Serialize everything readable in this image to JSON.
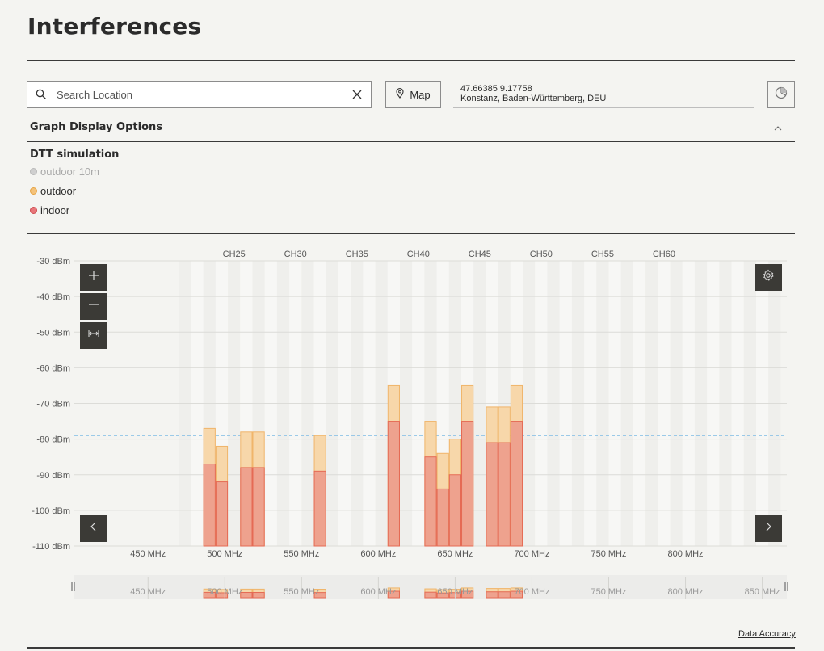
{
  "page": {
    "title": "Interferences"
  },
  "search": {
    "placeholder": "Search Location",
    "value": ""
  },
  "map_button": {
    "label": "Map"
  },
  "location": {
    "coordinates": "47.66385 9.17758",
    "address": "Konstanz, Baden-Württemberg, DEU"
  },
  "graph_options": {
    "header": "Graph Display Options"
  },
  "legend": {
    "title": "DTT simulation",
    "items": [
      {
        "label": "outdoor 10m",
        "color": "#c9c9c9",
        "text_color": "#a9a9a9",
        "active": false
      },
      {
        "label": "outdoor",
        "color": "#f2b860",
        "text_color": "#2b2b2b",
        "active": true
      },
      {
        "label": "indoor",
        "color": "#e2676b",
        "text_color": "#2b2b2b",
        "active": true
      }
    ]
  },
  "colors": {
    "outdoor_fill": "#f7d7aa",
    "outdoor_stroke": "#f0b56a",
    "indoor_fill": "#eea28e",
    "indoor_stroke": "#e56a54",
    "threshold_line": "#8ec3e6",
    "button_dark": "#3b3a36"
  },
  "chart_data": {
    "type": "bar",
    "ylim": [
      -110,
      -30
    ],
    "y_ticks": [
      -30,
      -40,
      -50,
      -60,
      -70,
      -80,
      -90,
      -100,
      -110
    ],
    "y_tick_labels": [
      "-30 dBm",
      "-40 dBm",
      "-50 dBm",
      "-60 dBm",
      "-70 dBm",
      "-80 dBm",
      "-90 dBm",
      "-100 dBm",
      "-110 dBm"
    ],
    "xlim_mhz": [
      402,
      866
    ],
    "x_ticks_mhz": [
      450,
      500,
      550,
      600,
      650,
      700,
      750,
      800
    ],
    "x_tick_labels": [
      "450 MHz",
      "500 MHz",
      "550 MHz",
      "600 MHz",
      "650 MHz",
      "700 MHz",
      "750 MHz",
      "800 MHz"
    ],
    "channel_labels": [
      {
        "label": "CH25",
        "channel": 25
      },
      {
        "label": "CH30",
        "channel": 30
      },
      {
        "label": "CH35",
        "channel": 35
      },
      {
        "label": "CH40",
        "channel": 40
      },
      {
        "label": "CH45",
        "channel": 45
      },
      {
        "label": "CH50",
        "channel": 50
      },
      {
        "label": "CH55",
        "channel": 55
      },
      {
        "label": "CH60",
        "channel": 60
      }
    ],
    "channel_width_mhz": 8,
    "first_channel": 21,
    "last_channel": 69,
    "threshold_dbm": -79,
    "series": [
      {
        "name": "outdoor",
        "points": [
          {
            "channel": 23,
            "value": -77
          },
          {
            "channel": 24,
            "value": -82
          },
          {
            "channel": 26,
            "value": -78
          },
          {
            "channel": 27,
            "value": -78
          },
          {
            "channel": 32,
            "value": -79
          },
          {
            "channel": 38,
            "value": -65
          },
          {
            "channel": 41,
            "value": -75
          },
          {
            "channel": 42,
            "value": -84
          },
          {
            "channel": 43,
            "value": -80
          },
          {
            "channel": 44,
            "value": -65
          },
          {
            "channel": 46,
            "value": -71
          },
          {
            "channel": 47,
            "value": -71
          },
          {
            "channel": 48,
            "value": -65
          }
        ]
      },
      {
        "name": "indoor",
        "points": [
          {
            "channel": 23,
            "value": -87
          },
          {
            "channel": 24,
            "value": -92
          },
          {
            "channel": 26,
            "value": -88
          },
          {
            "channel": 27,
            "value": -88
          },
          {
            "channel": 32,
            "value": -89
          },
          {
            "channel": 38,
            "value": -75
          },
          {
            "channel": 41,
            "value": -85
          },
          {
            "channel": 42,
            "value": -94
          },
          {
            "channel": 43,
            "value": -90
          },
          {
            "channel": 44,
            "value": -75
          },
          {
            "channel": 46,
            "value": -81
          },
          {
            "channel": 47,
            "value": -81
          },
          {
            "channel": 48,
            "value": -75
          }
        ]
      }
    ]
  },
  "overview": {
    "x_ticks_mhz": [
      450,
      500,
      550,
      600,
      650,
      700,
      750,
      800,
      850
    ],
    "x_tick_labels": [
      "450 MHz",
      "500 MHz",
      "550 MHz",
      "600 MHz",
      "650 MHz",
      "700 MHz",
      "750 MHz",
      "800 MHz",
      "850 MHz"
    ]
  },
  "footer": {
    "data_accuracy_label": "Data Accuracy"
  }
}
